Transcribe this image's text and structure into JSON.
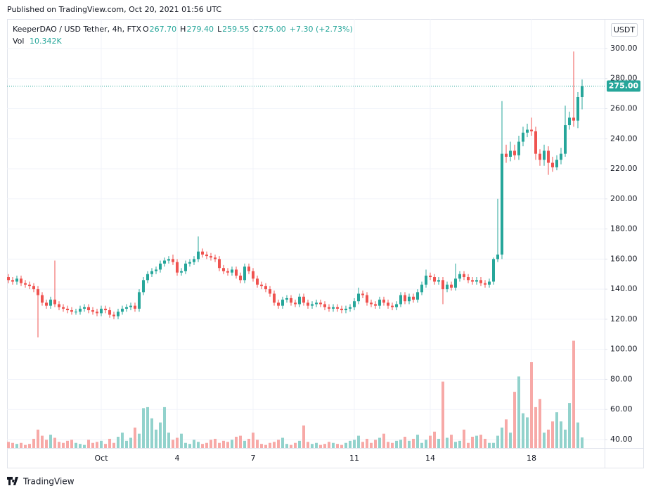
{
  "published": "Published on TradingView.com, Oct 20, 2021 01:56 UTC",
  "footer_brand": "TradingView",
  "currency_button": "USDT",
  "chart_data": {
    "type": "candlestick",
    "title": "KeeperDAO / USD Tether, 4h, FTX",
    "ohlc_legend": [
      {
        "key": "O",
        "value": "267.70"
      },
      {
        "key": "H",
        "value": "279.40"
      },
      {
        "key": "L",
        "value": "259.55"
      },
      {
        "key": "C",
        "value": "275.00"
      }
    ],
    "change": "+7.30 (+2.73%)",
    "volume_label": "Vol",
    "volume_value": "10.342K",
    "last_label": "275.00",
    "up_color": "#26a69a",
    "down_color": "#ef5350",
    "up_volume_color": "#92d2cc",
    "down_volume_color": "#f7a9a7",
    "ylim": [
      34.4,
      319.6
    ],
    "yticks": [
      {
        "value": 40,
        "label": "40.00"
      },
      {
        "value": 60,
        "label": "60.00"
      },
      {
        "value": 80,
        "label": "80.00"
      },
      {
        "value": 100,
        "label": "100.00"
      },
      {
        "value": 120,
        "label": "120.00"
      },
      {
        "value": 140,
        "label": "140.00"
      },
      {
        "value": 160,
        "label": "160.00"
      },
      {
        "value": 180,
        "label": "180.00"
      },
      {
        "value": 200,
        "label": "200.00"
      },
      {
        "value": 220,
        "label": "220.00"
      },
      {
        "value": 240,
        "label": "240.00"
      },
      {
        "value": 260,
        "label": "260.00"
      },
      {
        "value": 280,
        "label": "280.00"
      },
      {
        "value": 300,
        "label": "300.00"
      }
    ],
    "y2lim": [
      0,
      420
    ],
    "grid": true,
    "categories": [
      null,
      null,
      null,
      null,
      null,
      null,
      null,
      null,
      null,
      null,
      null,
      null,
      null,
      null,
      null,
      null,
      null,
      null,
      null,
      null,
      null,
      null,
      "Oct",
      null,
      null,
      null,
      null,
      null,
      null,
      null,
      null,
      null,
      null,
      null,
      null,
      null,
      null,
      null,
      null,
      null,
      "4",
      null,
      null,
      null,
      null,
      null,
      null,
      null,
      null,
      null,
      null,
      null,
      null,
      null,
      null,
      null,
      null,
      null,
      "7",
      null,
      null,
      null,
      null,
      null,
      null,
      null,
      null,
      null,
      null,
      null,
      null,
      null,
      null,
      null,
      null,
      null,
      null,
      null,
      null,
      null,
      null,
      null,
      "11",
      null,
      null,
      null,
      null,
      null,
      null,
      null,
      null,
      null,
      null,
      null,
      null,
      null,
      null,
      null,
      null,
      null,
      "14",
      null,
      null,
      null,
      null,
      null,
      null,
      null,
      null,
      null,
      null,
      null,
      null,
      null,
      null,
      null,
      null,
      null,
      null,
      null,
      null,
      null,
      null,
      null,
      "18",
      null,
      null,
      null,
      null,
      null,
      null,
      null,
      null,
      null,
      null,
      null,
      null
    ],
    "open": [
      148,
      146,
      145,
      147,
      144,
      143,
      142,
      140,
      136,
      131,
      129,
      133,
      130,
      128,
      127,
      126,
      125,
      125,
      127,
      128,
      126,
      125,
      124,
      127,
      126,
      123,
      122,
      125,
      127,
      128,
      129,
      127,
      138,
      146,
      150,
      152,
      153,
      157,
      159,
      160,
      158,
      151,
      152,
      157,
      158,
      160,
      165,
      163,
      162,
      161,
      160,
      154,
      152,
      151,
      153,
      149,
      146,
      155,
      152,
      147,
      143,
      142,
      140,
      137,
      131,
      129,
      133,
      134,
      131,
      130,
      135,
      131,
      129,
      130,
      131,
      130,
      128,
      127,
      128,
      127,
      126,
      127,
      128,
      132,
      137,
      136,
      131,
      130,
      129,
      133,
      131,
      129,
      128,
      130,
      136,
      132,
      135,
      133,
      138,
      143,
      149,
      148,
      145,
      146,
      140,
      143,
      141,
      147,
      150,
      148,
      146,
      145,
      146,
      144,
      143,
      145,
      160,
      163,
      230,
      228,
      232,
      229,
      238,
      244,
      246,
      245,
      230,
      226,
      232,
      224,
      221,
      226,
      230,
      249,
      254,
      252,
      267.7
    ],
    "high": [
      150,
      148,
      149,
      149,
      146,
      145,
      144,
      142,
      138,
      133,
      135,
      159,
      132,
      130,
      129,
      128,
      127,
      129,
      130,
      130,
      128,
      127,
      129,
      129,
      128,
      125,
      127,
      129,
      130,
      131,
      131,
      140,
      148,
      152,
      154,
      155,
      159,
      161,
      162,
      163,
      160,
      154,
      159,
      160,
      162,
      175,
      167,
      165,
      164,
      163,
      162,
      156,
      154,
      155,
      155,
      151,
      157,
      157,
      154,
      149,
      145,
      144,
      142,
      139,
      133,
      135,
      136,
      136,
      133,
      137,
      137,
      133,
      132,
      133,
      133,
      132,
      130,
      130,
      130,
      129,
      129,
      130,
      134,
      141,
      139,
      138,
      133,
      132,
      135,
      135,
      133,
      131,
      132,
      138,
      138,
      137,
      137,
      140,
      145,
      153,
      151,
      150,
      148,
      148,
      145,
      145,
      157,
      152,
      152,
      150,
      148,
      148,
      148,
      146,
      147,
      161,
      200,
      265,
      236,
      238,
      236,
      242,
      248,
      250,
      254,
      248,
      233,
      236,
      235,
      228,
      229,
      234,
      262,
      258,
      298,
      271,
      279.4
    ],
    "low": [
      144,
      143,
      143,
      142,
      141,
      140,
      138,
      108,
      129,
      127,
      127,
      128,
      126,
      125,
      124,
      123,
      123,
      123,
      125,
      124,
      123,
      122,
      122,
      124,
      121,
      120,
      120,
      123,
      125,
      126,
      125,
      125,
      136,
      144,
      148,
      150,
      151,
      155,
      157,
      156,
      149,
      149,
      150,
      155,
      156,
      158,
      161,
      160,
      159,
      158,
      152,
      150,
      149,
      149,
      147,
      144,
      144,
      150,
      145,
      141,
      140,
      138,
      135,
      129,
      127,
      127,
      131,
      129,
      128,
      128,
      129,
      127,
      127,
      128,
      128,
      126,
      125,
      125,
      125,
      124,
      124,
      125,
      126,
      130,
      134,
      129,
      128,
      127,
      127,
      129,
      127,
      126,
      126,
      128,
      130,
      130,
      131,
      131,
      136,
      141,
      146,
      143,
      143,
      130,
      138,
      139,
      139,
      145,
      146,
      144,
      143,
      143,
      142,
      141,
      141,
      143,
      158,
      160,
      224,
      225,
      226,
      226,
      235,
      241,
      242,
      226,
      222,
      222,
      216,
      218,
      219,
      223,
      228,
      246,
      248,
      247,
      259.55
    ],
    "close": [
      146,
      145,
      147,
      144,
      143,
      142,
      140,
      136,
      131,
      129,
      133,
      130,
      128,
      127,
      126,
      125,
      125,
      127,
      128,
      126,
      125,
      124,
      127,
      126,
      123,
      122,
      125,
      127,
      128,
      129,
      127,
      138,
      146,
      150,
      152,
      153,
      157,
      159,
      160,
      158,
      151,
      152,
      157,
      158,
      160,
      165,
      163,
      162,
      161,
      160,
      154,
      152,
      151,
      153,
      149,
      146,
      155,
      152,
      147,
      143,
      142,
      140,
      137,
      131,
      129,
      133,
      134,
      131,
      130,
      135,
      131,
      129,
      130,
      131,
      130,
      128,
      127,
      128,
      127,
      126,
      127,
      128,
      132,
      137,
      136,
      131,
      130,
      129,
      133,
      131,
      129,
      128,
      130,
      136,
      132,
      135,
      133,
      138,
      143,
      149,
      148,
      145,
      146,
      140,
      143,
      141,
      147,
      150,
      148,
      146,
      145,
      146,
      144,
      143,
      145,
      160,
      163,
      230,
      228,
      232,
      229,
      238,
      244,
      246,
      245,
      230,
      226,
      232,
      224,
      221,
      226,
      230,
      249,
      254,
      252,
      267.7,
      275
    ],
    "volume": [
      6,
      5,
      4,
      5,
      3,
      4,
      9,
      18,
      12,
      8,
      13,
      10,
      6,
      5,
      7,
      8,
      5,
      4,
      3,
      8,
      5,
      6,
      7,
      4,
      9,
      5,
      11,
      15,
      7,
      10,
      20,
      14,
      39,
      40,
      29,
      18,
      25,
      40,
      15,
      8,
      10,
      14,
      5,
      4,
      8,
      6,
      4,
      5,
      8,
      9,
      5,
      7,
      6,
      8,
      11,
      12,
      7,
      9,
      15,
      8,
      4,
      3,
      5,
      6,
      8,
      10,
      4,
      3,
      5,
      7,
      22,
      6,
      4,
      5,
      3,
      4,
      6,
      5,
      4,
      3,
      5,
      7,
      8,
      12,
      6,
      9,
      5,
      8,
      10,
      14,
      6,
      5,
      7,
      8,
      11,
      7,
      9,
      13,
      5,
      8,
      12,
      16,
      9,
      65,
      10,
      13,
      6,
      7,
      18,
      5,
      11,
      12,
      13,
      9,
      5,
      5,
      12,
      20,
      28,
      15,
      55,
      70,
      34,
      30,
      84,
      40,
      48,
      15,
      18,
      26,
      35,
      26,
      18,
      44,
      105,
      25,
      10.342
    ]
  }
}
